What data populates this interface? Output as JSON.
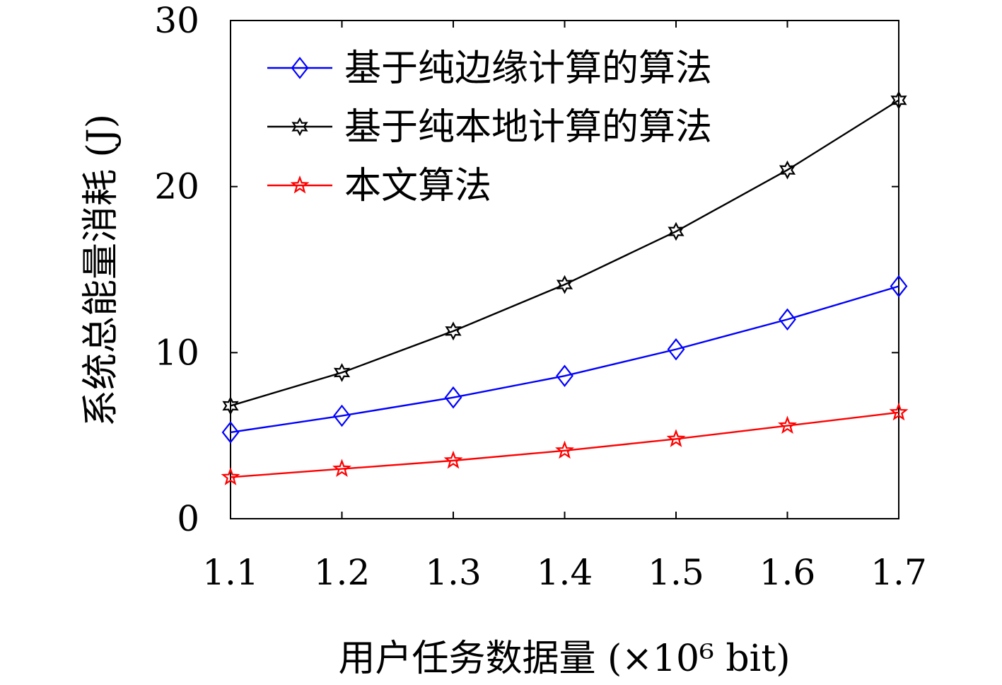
{
  "chart_data": {
    "type": "line",
    "title": "",
    "xlabel": "用户任务数据量 (×10⁶ bit)",
    "ylabel": "系统总能量消耗 (J)",
    "x": [
      1.1,
      1.2,
      1.3,
      1.4,
      1.5,
      1.6,
      1.7
    ],
    "x_tick_labels": [
      "1.1",
      "1.2",
      "1.3",
      "1.4",
      "1.5",
      "1.6",
      "1.7"
    ],
    "y_ticks": [
      0,
      10,
      20,
      30
    ],
    "y_tick_labels": [
      "0",
      "10",
      "20",
      "30"
    ],
    "xlim": [
      1.1,
      1.7
    ],
    "ylim": [
      0,
      30
    ],
    "grid": false,
    "legend_position": "top-left",
    "series": [
      {
        "name": "基于纯边缘计算的算法",
        "color": "#0000ff",
        "marker": "diamond",
        "values": [
          5.2,
          6.2,
          7.3,
          8.6,
          10.2,
          12.0,
          14.0
        ]
      },
      {
        "name": "基于纯本地计算的算法",
        "color": "#000000",
        "marker": "hexagram",
        "values": [
          6.8,
          8.8,
          11.3,
          14.1,
          17.3,
          21.0,
          25.2
        ]
      },
      {
        "name": "本文算法",
        "color": "#ff0000",
        "marker": "pentagram",
        "values": [
          2.5,
          3.0,
          3.5,
          4.1,
          4.8,
          5.6,
          6.4
        ]
      }
    ]
  }
}
